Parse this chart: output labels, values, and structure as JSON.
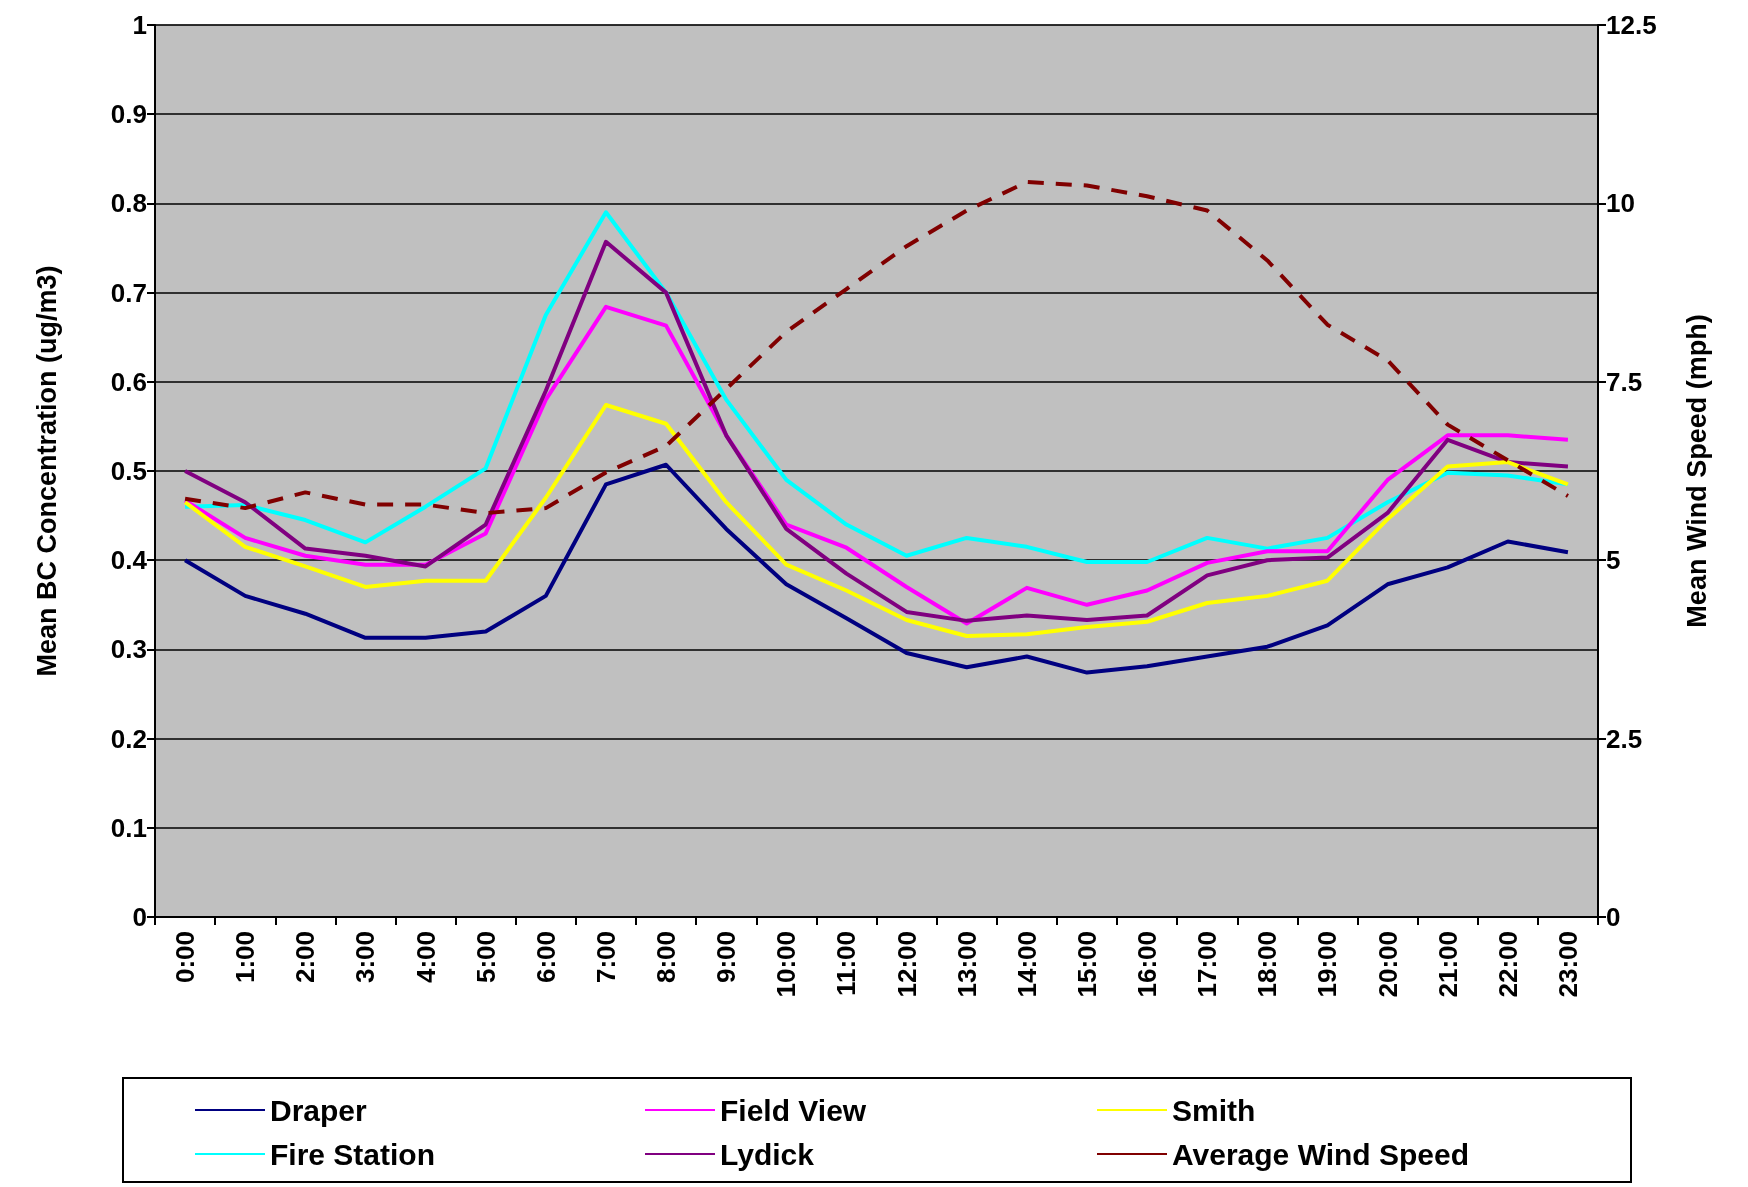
{
  "chart_data": {
    "type": "line",
    "categories": [
      "0:00",
      "1:00",
      "2:00",
      "3:00",
      "4:00",
      "5:00",
      "6:00",
      "7:00",
      "8:00",
      "9:00",
      "10:00",
      "11:00",
      "12:00",
      "13:00",
      "14:00",
      "15:00",
      "16:00",
      "17:00",
      "18:00",
      "19:00",
      "20:00",
      "21:00",
      "22:00",
      "23:00"
    ],
    "ylabel": "Mean BC Concentration (ug/m3)",
    "y2label": "Mean Wind Speed (mph)",
    "ylim": [
      0,
      1
    ],
    "yticks": [
      0,
      0.1,
      0.2,
      0.3,
      0.4,
      0.5,
      0.6,
      0.7,
      0.8,
      0.9,
      1
    ],
    "y2lim": [
      0,
      12.5
    ],
    "y2ticks": [
      0,
      2.5,
      5,
      7.5,
      10,
      12.5
    ],
    "grid": "y",
    "legend": "bottom",
    "marker": "none",
    "series": [
      {
        "name": "Draper",
        "color": "#000080",
        "values": [
          0.4,
          0.36,
          0.34,
          0.313,
          0.313,
          0.32,
          0.36,
          0.485,
          0.507,
          0.435,
          0.373,
          0.335,
          0.296,
          0.28,
          0.292,
          0.274,
          0.281,
          0.292,
          0.303,
          0.327,
          0.373,
          0.392,
          0.421,
          0.409
        ]
      },
      {
        "name": "Fire Station",
        "color": "#00ffff",
        "values": [
          0.46,
          0.462,
          0.445,
          0.42,
          0.46,
          0.503,
          0.675,
          0.79,
          0.7,
          0.58,
          0.49,
          0.44,
          0.405,
          0.425,
          0.415,
          0.398,
          0.398,
          0.425,
          0.413,
          0.425,
          0.465,
          0.498,
          0.495,
          0.485
        ]
      },
      {
        "name": "Field View",
        "color": "#ff00ff",
        "values": [
          0.467,
          0.425,
          0.405,
          0.395,
          0.395,
          0.43,
          0.58,
          0.684,
          0.663,
          0.54,
          0.44,
          0.414,
          0.37,
          0.329,
          0.369,
          0.35,
          0.366,
          0.397,
          0.41,
          0.41,
          0.49,
          0.54,
          0.54,
          0.535
        ]
      },
      {
        "name": "Lydick",
        "color": "#800080",
        "values": [
          0.5,
          0.465,
          0.413,
          0.405,
          0.393,
          0.44,
          0.59,
          0.757,
          0.7,
          0.54,
          0.435,
          0.385,
          0.342,
          0.332,
          0.338,
          0.333,
          0.338,
          0.383,
          0.4,
          0.403,
          0.453,
          0.535,
          0.51,
          0.505
        ]
      },
      {
        "name": "Smith",
        "color": "#ffff00",
        "values": [
          0.465,
          0.415,
          0.393,
          0.37,
          0.377,
          0.377,
          0.47,
          0.574,
          0.553,
          0.465,
          0.395,
          0.366,
          0.333,
          0.315,
          0.317,
          0.325,
          0.331,
          0.352,
          0.36,
          0.377,
          0.446,
          0.505,
          0.51,
          0.485
        ]
      },
      {
        "name": "Average Wind Speed",
        "color": "#800000",
        "axis": "y2",
        "line_style": "dashed",
        "values": [
          5.86,
          5.73,
          5.95,
          5.78,
          5.78,
          5.66,
          5.73,
          6.23,
          6.6,
          7.4,
          8.2,
          8.8,
          9.4,
          9.9,
          10.3,
          10.25,
          10.1,
          9.9,
          9.2,
          8.3,
          7.8,
          6.9,
          6.4,
          5.9
        ]
      }
    ]
  }
}
